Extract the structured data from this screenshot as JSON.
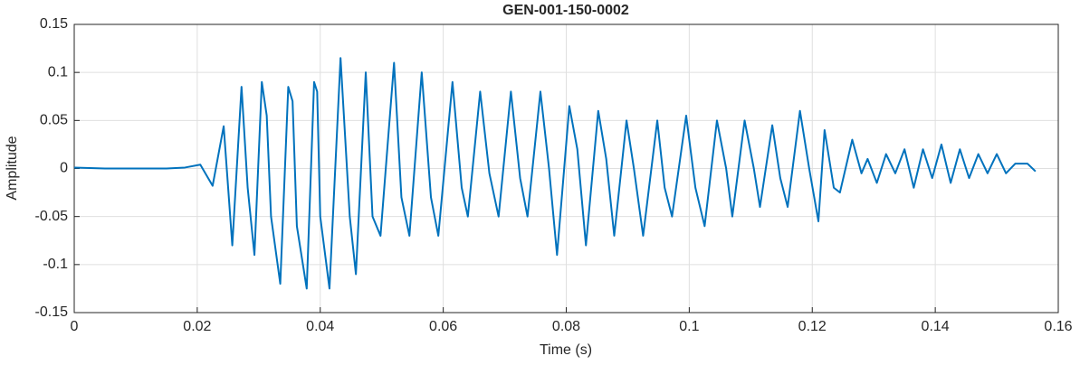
{
  "chart_data": {
    "type": "line",
    "title": "GEN-001-150-0002",
    "xlabel": "Time (s)",
    "ylabel": "Amplitude",
    "xlim": [
      0,
      0.16
    ],
    "ylim": [
      -0.15,
      0.15
    ],
    "xticks": [
      0,
      0.02,
      0.04,
      0.06,
      0.08,
      0.1,
      0.12,
      0.14,
      0.16
    ],
    "yticks": [
      -0.15,
      -0.1,
      -0.05,
      0,
      0.05,
      0.1,
      0.15
    ],
    "grid": true,
    "series": [
      {
        "color": "#0072bd",
        "x": [
          0,
          0.005,
          0.01,
          0.015,
          0.018,
          0.0205,
          0.0225,
          0.0243,
          0.0257,
          0.0272,
          0.0282,
          0.0293,
          0.0305,
          0.0313,
          0.032,
          0.0335,
          0.0348,
          0.0355,
          0.0362,
          0.0378,
          0.039,
          0.0395,
          0.04,
          0.0415,
          0.0433,
          0.0448,
          0.0458,
          0.0474,
          0.0485,
          0.0498,
          0.052,
          0.0532,
          0.0545,
          0.0565,
          0.058,
          0.0592,
          0.0615,
          0.063,
          0.064,
          0.066,
          0.0675,
          0.069,
          0.071,
          0.0725,
          0.0737,
          0.0758,
          0.0772,
          0.0785,
          0.0805,
          0.0818,
          0.0832,
          0.0852,
          0.0865,
          0.0878,
          0.0898,
          0.091,
          0.0925,
          0.0948,
          0.096,
          0.0972,
          0.0995,
          0.101,
          0.1025,
          0.1045,
          0.106,
          0.107,
          0.109,
          0.1105,
          0.1115,
          0.1135,
          0.1148,
          0.116,
          0.118,
          0.1195,
          0.121,
          0.122,
          0.1235,
          0.1245,
          0.1265,
          0.128,
          0.129,
          0.1305,
          0.132,
          0.1335,
          0.135,
          0.1365,
          0.138,
          0.1395,
          0.141,
          0.1425,
          0.144,
          0.1455,
          0.147,
          0.1485,
          0.15,
          0.1515,
          0.153,
          0.155,
          0.1563
        ],
        "values": [
          0.001,
          0,
          0,
          0,
          0.001,
          0.004,
          -0.018,
          0.044,
          -0.08,
          0.085,
          -0.02,
          -0.09,
          0.09,
          0.055,
          -0.05,
          -0.12,
          0.085,
          0.07,
          -0.06,
          -0.125,
          0.09,
          0.08,
          -0.05,
          -0.125,
          0.115,
          -0.05,
          -0.11,
          0.1,
          -0.05,
          -0.07,
          0.11,
          -0.03,
          -0.07,
          0.1,
          -0.03,
          -0.07,
          0.09,
          -0.02,
          -0.05,
          0.08,
          -0.005,
          -0.05,
          0.08,
          -0.01,
          -0.05,
          0.08,
          0,
          -0.09,
          0.065,
          0.02,
          -0.08,
          0.06,
          0.01,
          -0.07,
          0.05,
          0,
          -0.07,
          0.05,
          -0.02,
          -0.05,
          0.055,
          -0.02,
          -0.06,
          0.05,
          0,
          -0.05,
          0.05,
          0,
          -0.04,
          0.045,
          -0.01,
          -0.04,
          0.06,
          0,
          -0.055,
          0.04,
          -0.02,
          -0.025,
          0.03,
          -0.005,
          0.01,
          -0.015,
          0.015,
          -0.005,
          0.02,
          -0.02,
          0.02,
          -0.01,
          0.025,
          -0.015,
          0.02,
          -0.01,
          0.015,
          -0.005,
          0.015,
          -0.005,
          0.005,
          0.005,
          -0.003
        ]
      }
    ]
  }
}
